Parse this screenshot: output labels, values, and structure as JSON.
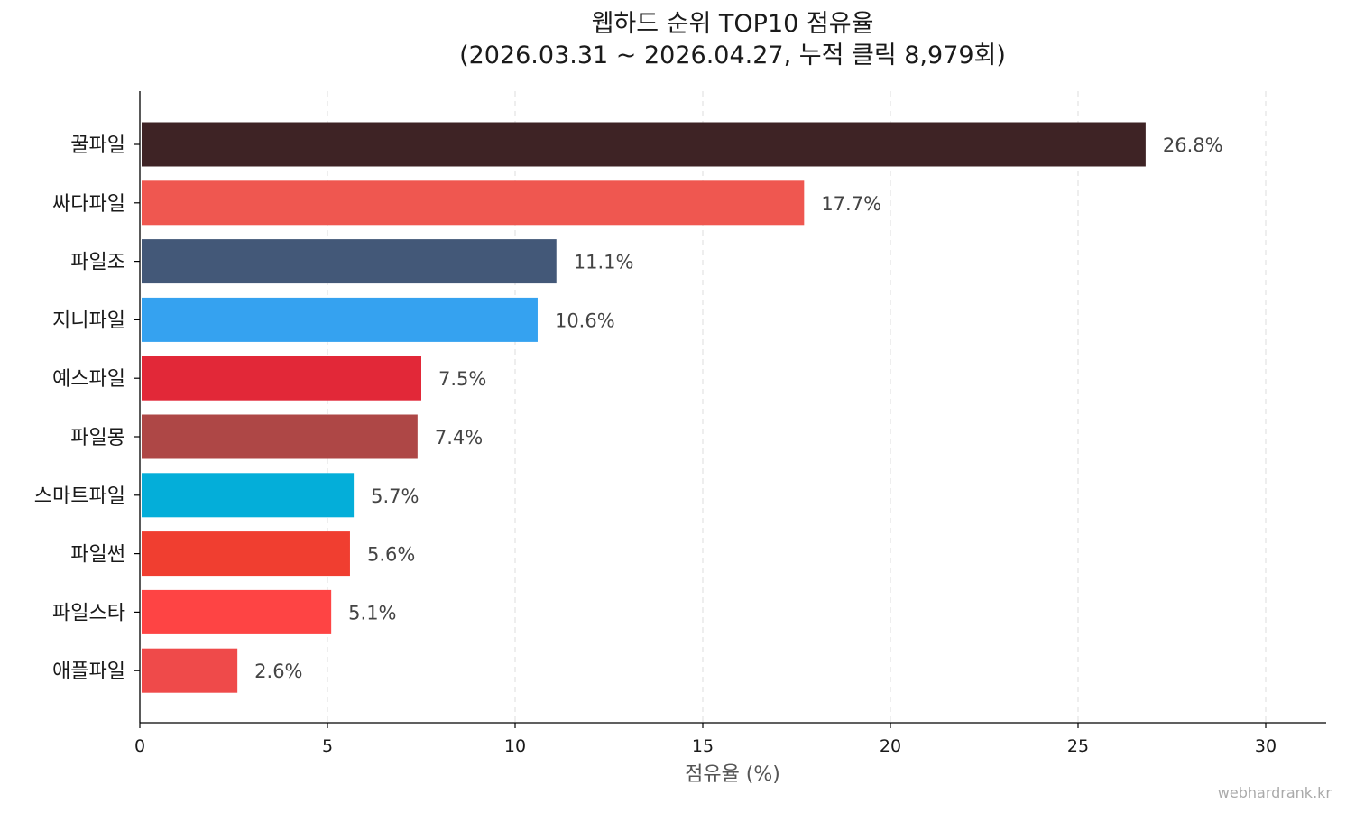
{
  "chart_data": {
    "type": "bar",
    "orientation": "horizontal",
    "title": "웹하드 순위 TOP10 점유율",
    "subtitle": "(2026.03.31 ~ 2026.04.27, 누적 클릭 8,979회)",
    "xlabel": "점유율 (%)",
    "ylabel": "",
    "xlim": [
      0,
      31.6
    ],
    "xticks": [
      0,
      5,
      10,
      15,
      20,
      25,
      30
    ],
    "grid": "x-dashed",
    "categories": [
      "꿀파일",
      "싸다파일",
      "파일조",
      "지니파일",
      "예스파일",
      "파일몽",
      "스마트파일",
      "파일썬",
      "파일스타",
      "애플파일"
    ],
    "values": [
      26.8,
      17.7,
      11.1,
      10.6,
      7.5,
      7.4,
      5.7,
      5.6,
      5.1,
      2.6
    ],
    "value_labels": [
      "26.8%",
      "17.7%",
      "11.1%",
      "10.6%",
      "7.5%",
      "7.4%",
      "5.7%",
      "5.6%",
      "5.1%",
      "2.6%"
    ],
    "colors": [
      "#3e2325",
      "#ef5750",
      "#435878",
      "#35a2f0",
      "#e22838",
      "#ae4746",
      "#04aed9",
      "#f03e30",
      "#fe4444",
      "#ef4a4a"
    ]
  },
  "watermark": "webhardrank.kr"
}
